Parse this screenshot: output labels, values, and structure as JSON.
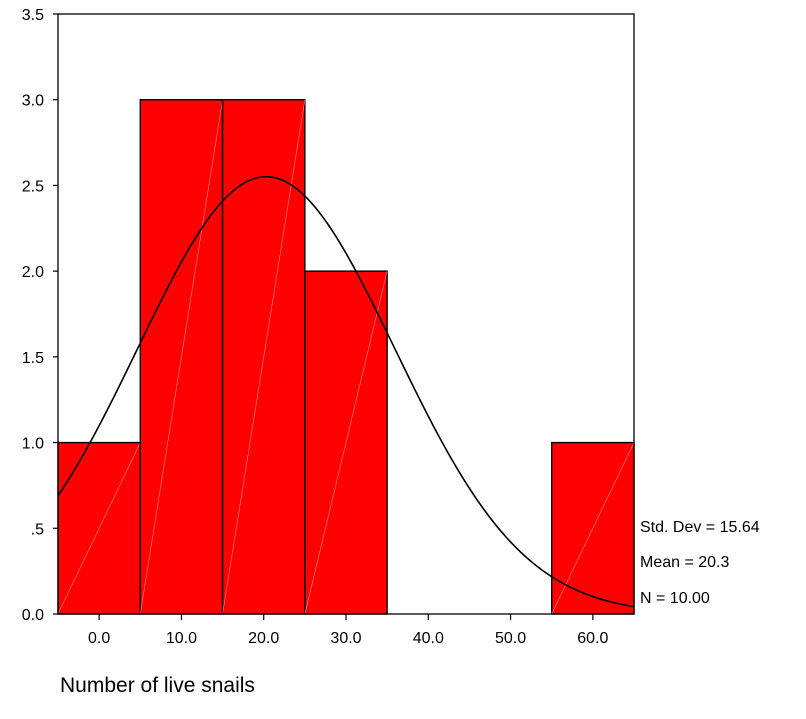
{
  "chart_data": {
    "type": "bar",
    "subtype": "histogram",
    "title": "",
    "xlabel": "Number of live snails",
    "ylabel": "",
    "bins": [
      {
        "start": -5,
        "end": 5,
        "count": 1
      },
      {
        "start": 5,
        "end": 15,
        "count": 3
      },
      {
        "start": 15,
        "end": 25,
        "count": 3
      },
      {
        "start": 25,
        "end": 35,
        "count": 2
      },
      {
        "start": 35,
        "end": 45,
        "count": 0
      },
      {
        "start": 45,
        "end": 55,
        "count": 0
      },
      {
        "start": 55,
        "end": 65,
        "count": 1
      }
    ],
    "xlim": [
      -5,
      65
    ],
    "ylim": [
      0,
      3.5
    ],
    "x_ticks": [
      {
        "value": 0,
        "label": "0.0"
      },
      {
        "value": 10,
        "label": "10.0"
      },
      {
        "value": 20,
        "label": "20.0"
      },
      {
        "value": 30,
        "label": "30.0"
      },
      {
        "value": 40,
        "label": "40.0"
      },
      {
        "value": 50,
        "label": "50.0"
      },
      {
        "value": 60,
        "label": "60.0"
      }
    ],
    "y_ticks": [
      {
        "value": 0,
        "label": "0.0"
      },
      {
        "value": 0.5,
        "label": ".5"
      },
      {
        "value": 1,
        "label": "1.0"
      },
      {
        "value": 1.5,
        "label": "1.5"
      },
      {
        "value": 2,
        "label": "2.0"
      },
      {
        "value": 2.5,
        "label": "2.5"
      },
      {
        "value": 3,
        "label": "3.0"
      },
      {
        "value": 3.5,
        "label": "3.5"
      }
    ],
    "normal_curve": {
      "mean": 20.3,
      "std_dev": 15.64,
      "n": 10,
      "bin_width": 10
    },
    "stats": {
      "std_dev": "Std. Dev = 15.64",
      "mean": "Mean = 20.3",
      "n": "N = 10.00"
    },
    "grid": false,
    "legend": "none",
    "colors": {
      "bar_fill": "#ff0000",
      "bar_stroke": "#000000",
      "curve": "#000000"
    }
  }
}
